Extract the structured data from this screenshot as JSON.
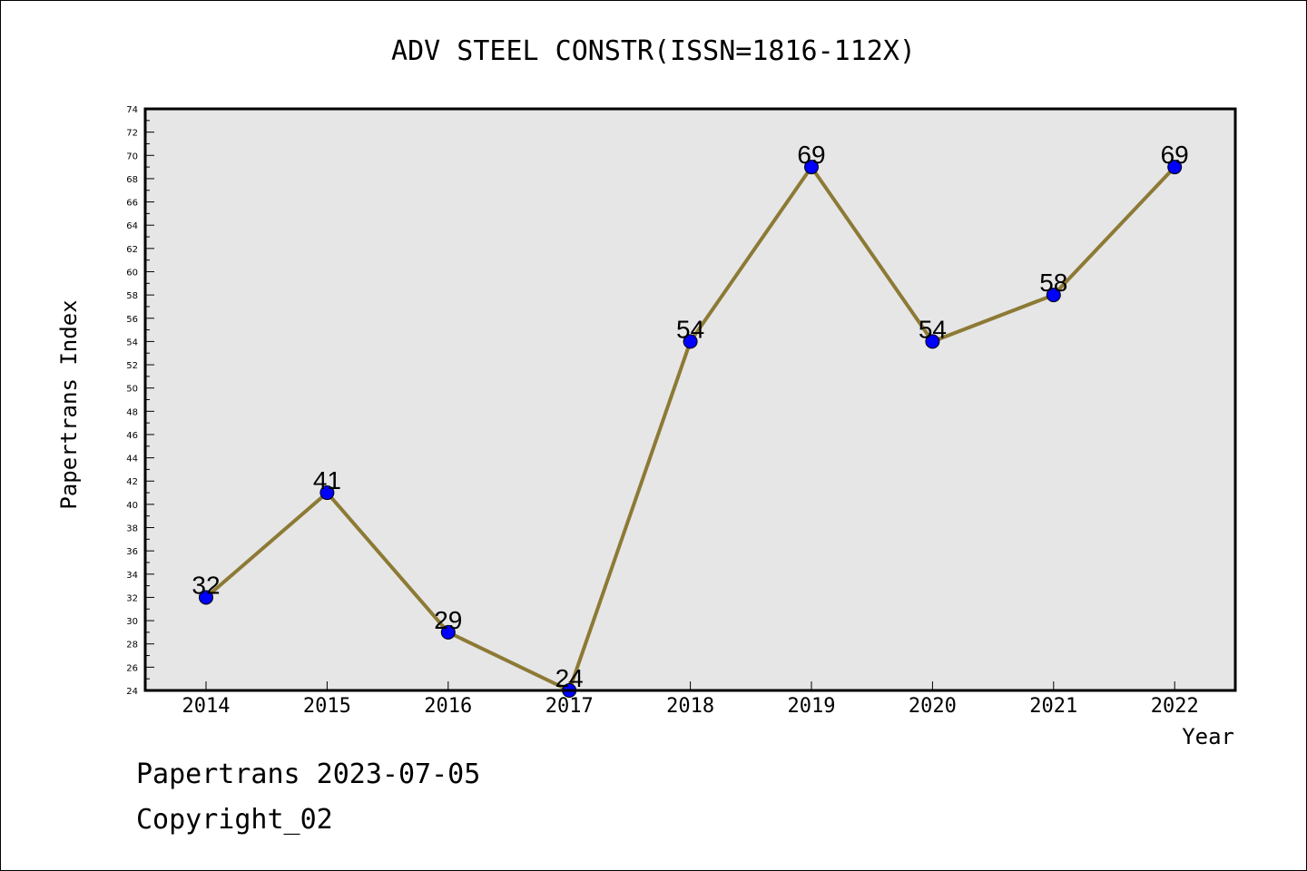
{
  "chart_data": {
    "type": "line",
    "title": "ADV STEEL CONSTR(ISSN=1816-112X)",
    "xlabel": "Year",
    "ylabel": "Papertrans Index",
    "categories": [
      "2014",
      "2015",
      "2016",
      "2017",
      "2018",
      "2019",
      "2020",
      "2021",
      "2022"
    ],
    "series": [
      {
        "values": [
          32,
          41,
          29,
          24,
          54,
          69,
          54,
          58,
          69
        ]
      }
    ],
    "ylim": [
      24,
      74
    ],
    "y_ticks": [
      24,
      26,
      28,
      30,
      32,
      34,
      36,
      38,
      40,
      42,
      44,
      46,
      48,
      50,
      52,
      54,
      56,
      58,
      60,
      62,
      64,
      66,
      68,
      70,
      72,
      74
    ],
    "grid": false,
    "colors": {
      "line": "#8c7a35",
      "marker": "#0000ff",
      "plot_bg": "#e6e6e6"
    }
  },
  "footer": {
    "date_line": "Papertrans 2023-07-05",
    "copyright": "Copyright_02"
  }
}
